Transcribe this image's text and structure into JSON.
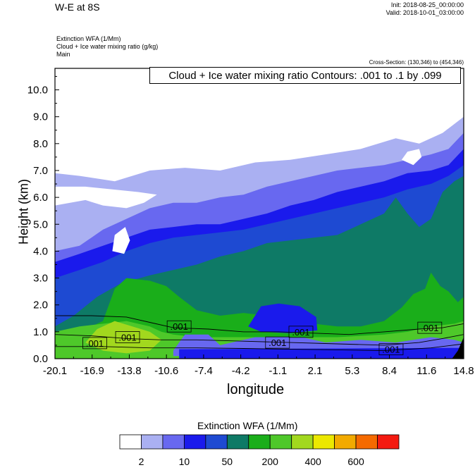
{
  "header": {
    "title": "W-E at 8S",
    "init": "Init: 2018-08-25_00:00:00",
    "valid": "Valid: 2018-10-01_03:00:00",
    "sub1": "Extinction WFA   (1/Mm)",
    "sub2": "Cloud + Ice water mixing ratio   (g/kg)",
    "sub3": "Main",
    "cross_section": "Cross-Section: (130,346) to (454,346)",
    "contour_info": "Cloud + Ice water mixing ratio Contours: .001 to .1 by .099"
  },
  "chart_data": {
    "type": "heatmap",
    "xlabel": "longitude",
    "ylabel": "Height (km)",
    "xlim": [
      -20.1,
      14.8
    ],
    "ylim": [
      0,
      10.8
    ],
    "x_ticks": [
      "-20.1",
      "-16.9",
      "-13.8",
      "-10.6",
      "-7.4",
      "-4.2",
      "-1.1",
      "2.1",
      "5.3",
      "8.4",
      "11.6",
      "14.8"
    ],
    "y_ticks": [
      "0.0",
      "1.0",
      "2.0",
      "3.0",
      "4.0",
      "5.0",
      "6.0",
      "7.0",
      "8.0",
      "9.0",
      "10.0"
    ],
    "contour_labels": [
      {
        "text": ".001",
        "lon": -16.7,
        "h": 0.58
      },
      {
        "text": ".001",
        "lon": -13.9,
        "h": 0.8
      },
      {
        "text": ".001",
        "lon": -9.5,
        "h": 1.2
      },
      {
        "text": ".001",
        "lon": -1.1,
        "h": 0.6
      },
      {
        "text": ".001",
        "lon": 0.9,
        "h": 1.0
      },
      {
        "text": ".001",
        "lon": 8.6,
        "h": 0.35
      },
      {
        "text": ".001",
        "lon": 11.9,
        "h": 1.15
      }
    ],
    "colorbar": {
      "title": "Extinction WFA  (1/Mm)",
      "colors": [
        "#ffffff",
        "#aab0f2",
        "#6868f0",
        "#1a1aec",
        "#1e4ad2",
        "#0e7a66",
        "#1aae1a",
        "#4ec82a",
        "#a2d81e",
        "#ece800",
        "#f2aa00",
        "#f56a00",
        "#f41a10"
      ],
      "tick_labels": [
        "2",
        "10",
        "50",
        "200",
        "400",
        "600"
      ]
    }
  }
}
